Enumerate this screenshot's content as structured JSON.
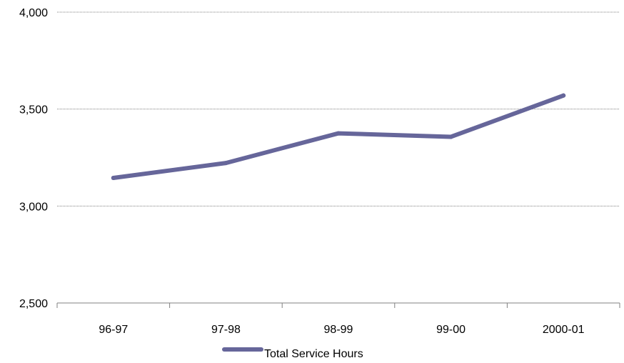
{
  "chart_data": {
    "type": "line",
    "title": "",
    "xlabel": "",
    "ylabel": "",
    "categories": [
      "96-97",
      "97-98",
      "98-99",
      "99-00",
      "2000-01"
    ],
    "series": [
      {
        "name": "Total Service Hours",
        "values": [
          3145,
          3222,
          3375,
          3357,
          3570
        ],
        "color": "#66669a"
      }
    ],
    "ylim": [
      2500,
      4000
    ],
    "yticks": [
      2500,
      3000,
      3500,
      4000
    ],
    "ytick_labels": [
      "2,500",
      "3,000",
      "3,500",
      "4,000"
    ],
    "grid": "horizontal dotted",
    "legend_position": "bottom"
  }
}
